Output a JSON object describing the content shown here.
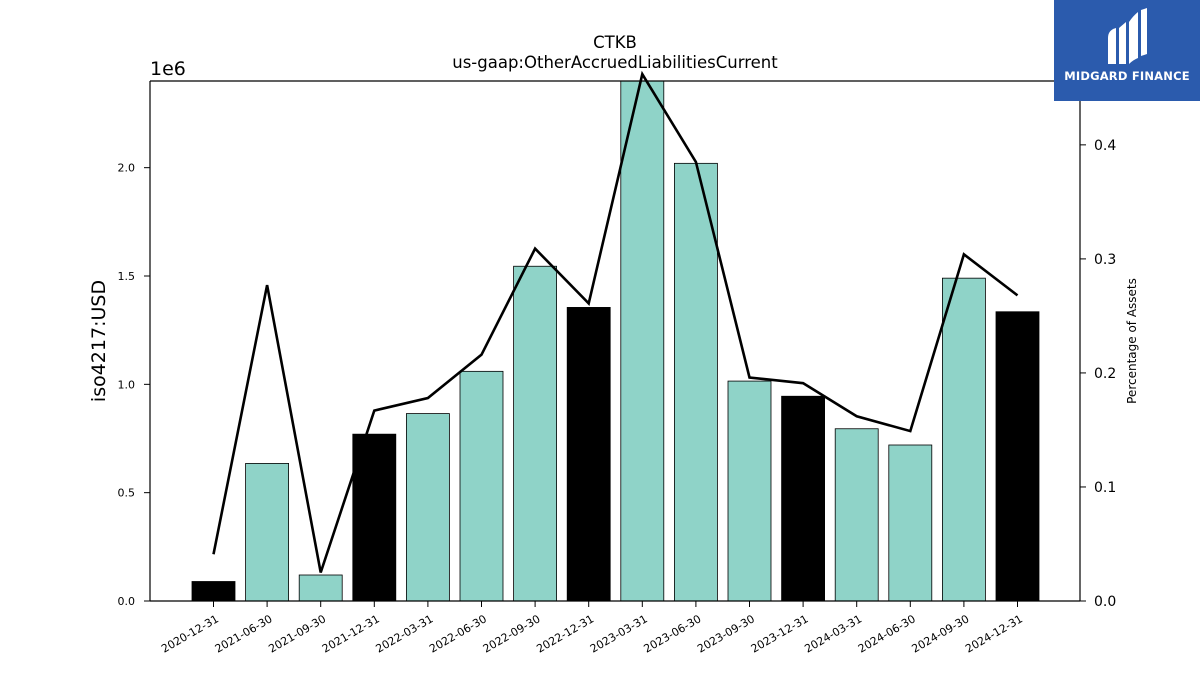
{
  "chart_data": {
    "type": "bar",
    "title": "CTKB",
    "subtitle": "us-gaap:OtherAccruedLiabilitiesCurrent",
    "ylabel": "iso4217:USD",
    "y2label": "Percentage of Assets",
    "y_multiplier_label": "1e6",
    "ylim": [
      0,
      2400000
    ],
    "y2lim": [
      0,
      0.456
    ],
    "y_ticks": [
      0,
      500000,
      1000000,
      1500000,
      2000000
    ],
    "y_tick_labels": [
      "0.0",
      "0.5",
      "1.0",
      "1.5",
      "2.0"
    ],
    "y2_ticks": [
      0,
      0.1,
      0.2,
      0.3,
      0.4
    ],
    "y2_tick_labels": [
      "0.0",
      "0.1",
      "0.2",
      "0.3",
      "0.4"
    ],
    "categories": [
      "2020-12-31",
      "2021-06-30",
      "2021-09-30",
      "2021-12-31",
      "2022-03-31",
      "2022-06-30",
      "2022-09-30",
      "2022-12-31",
      "2023-03-31",
      "2023-06-30",
      "2023-09-30",
      "2023-12-31",
      "2024-03-31",
      "2024-06-30",
      "2024-09-30",
      "2024-12-31"
    ],
    "values": [
      90000,
      635000,
      120000,
      770000,
      865000,
      1060000,
      1545000,
      1355000,
      2410000,
      2020000,
      1015000,
      945000,
      795000,
      720000,
      1490000,
      1335000
    ],
    "year_end": [
      true,
      false,
      false,
      true,
      false,
      false,
      false,
      true,
      false,
      false,
      false,
      true,
      false,
      false,
      false,
      true
    ],
    "pct_of_assets": [
      0.041,
      0.277,
      0.025,
      0.167,
      0.178,
      0.216,
      0.309,
      0.261,
      0.462,
      0.385,
      0.196,
      0.191,
      0.162,
      0.149,
      0.304,
      0.268
    ],
    "colors": {
      "bar": "#8fd3c8",
      "bar_year_end": "#000000",
      "line": "#000000"
    }
  },
  "logo": {
    "text": "MIDGARD FINANCE",
    "background": "#2b5bad"
  }
}
